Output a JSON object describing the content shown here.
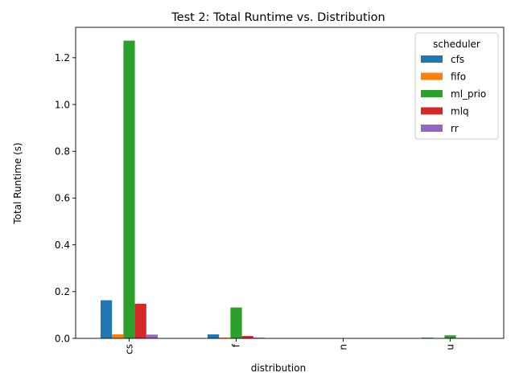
{
  "chart_data": {
    "type": "bar",
    "title": "Test 2: Total Runtime vs. Distribution",
    "xlabel": "distribution",
    "ylabel": "Total Runtime (s)",
    "categories": [
      "cs",
      "f",
      "n",
      "u"
    ],
    "ylim": [
      0,
      1.33
    ],
    "yticks": [
      0.0,
      0.2,
      0.4,
      0.6,
      0.8,
      1.0,
      1.2
    ],
    "ytick_labels": [
      "0.0",
      "0.2",
      "0.4",
      "0.6",
      "0.8",
      "1.0",
      "1.2"
    ],
    "grid": false,
    "legend": {
      "title": "scheduler",
      "placement": "top-right"
    },
    "series": [
      {
        "name": "cfs",
        "color": "#1f77b4",
        "values": [
          0.163,
          0.017,
          0.0003,
          0.003
        ]
      },
      {
        "name": "fifo",
        "color": "#ff7f0e",
        "values": [
          0.017,
          0.003,
          0.0002,
          0.001
        ]
      },
      {
        "name": "ml_prio",
        "color": "#2ca02c",
        "values": [
          1.273,
          0.132,
          0.0004,
          0.013
        ]
      },
      {
        "name": "mlq",
        "color": "#d62728",
        "values": [
          0.148,
          0.01,
          0.0003,
          0.001
        ]
      },
      {
        "name": "rr",
        "color": "#9467bd",
        "values": [
          0.016,
          0.003,
          0.0002,
          0.001
        ]
      }
    ]
  }
}
